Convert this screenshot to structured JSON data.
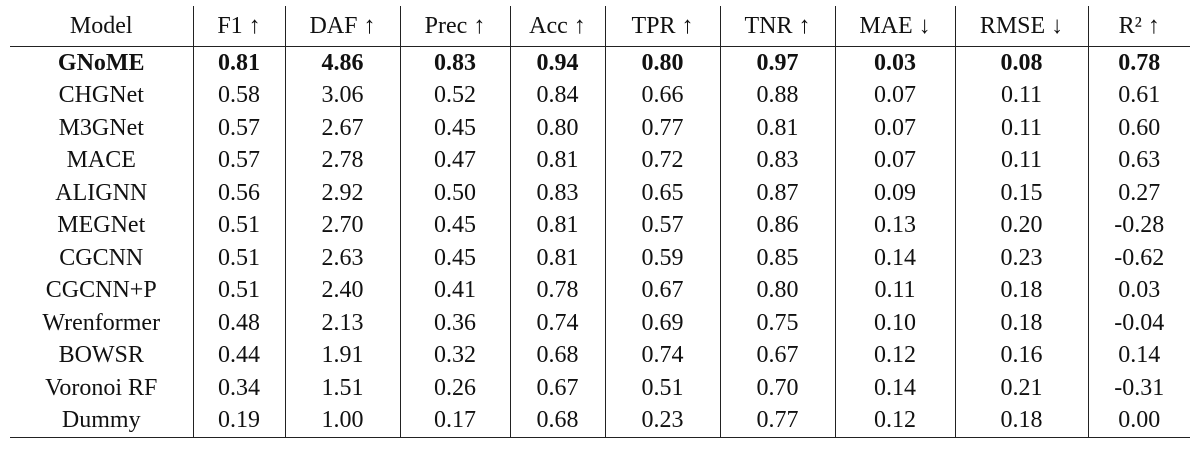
{
  "table": {
    "header": [
      "Model",
      "F1 ↑",
      "DAF ↑",
      "Prec ↑",
      "Acc ↑",
      "TPR ↑",
      "TNR ↑",
      "MAE ↓",
      "RMSE ↓",
      "R² ↑"
    ],
    "rows": [
      [
        "GNoME",
        "0.81",
        "4.86",
        "0.83",
        "0.94",
        "0.80",
        "0.97",
        "0.03",
        "0.08",
        "0.78"
      ],
      [
        "CHGNet",
        "0.58",
        "3.06",
        "0.52",
        "0.84",
        "0.66",
        "0.88",
        "0.07",
        "0.11",
        "0.61"
      ],
      [
        "M3GNet",
        "0.57",
        "2.67",
        "0.45",
        "0.80",
        "0.77",
        "0.81",
        "0.07",
        "0.11",
        "0.60"
      ],
      [
        "MACE",
        "0.57",
        "2.78",
        "0.47",
        "0.81",
        "0.72",
        "0.83",
        "0.07",
        "0.11",
        "0.63"
      ],
      [
        "ALIGNN",
        "0.56",
        "2.92",
        "0.50",
        "0.83",
        "0.65",
        "0.87",
        "0.09",
        "0.15",
        "0.27"
      ],
      [
        "MEGNet",
        "0.51",
        "2.70",
        "0.45",
        "0.81",
        "0.57",
        "0.86",
        "0.13",
        "0.20",
        "-0.28"
      ],
      [
        "CGCNN",
        "0.51",
        "2.63",
        "0.45",
        "0.81",
        "0.59",
        "0.85",
        "0.14",
        "0.23",
        "-0.62"
      ],
      [
        "CGCNN+P",
        "0.51",
        "2.40",
        "0.41",
        "0.78",
        "0.67",
        "0.80",
        "0.11",
        "0.18",
        "0.03"
      ],
      [
        "Wrenformer",
        "0.48",
        "2.13",
        "0.36",
        "0.74",
        "0.69",
        "0.75",
        "0.10",
        "0.18",
        "-0.04"
      ],
      [
        "BOWSR",
        "0.44",
        "1.91",
        "0.32",
        "0.68",
        "0.74",
        "0.67",
        "0.12",
        "0.16",
        "0.14"
      ],
      [
        "Voronoi RF",
        "0.34",
        "1.51",
        "0.26",
        "0.67",
        "0.51",
        "0.70",
        "0.14",
        "0.21",
        "-0.31"
      ],
      [
        "Dummy",
        "0.19",
        "1.00",
        "0.17",
        "0.68",
        "0.23",
        "0.77",
        "0.12",
        "0.18",
        "0.00"
      ]
    ]
  }
}
